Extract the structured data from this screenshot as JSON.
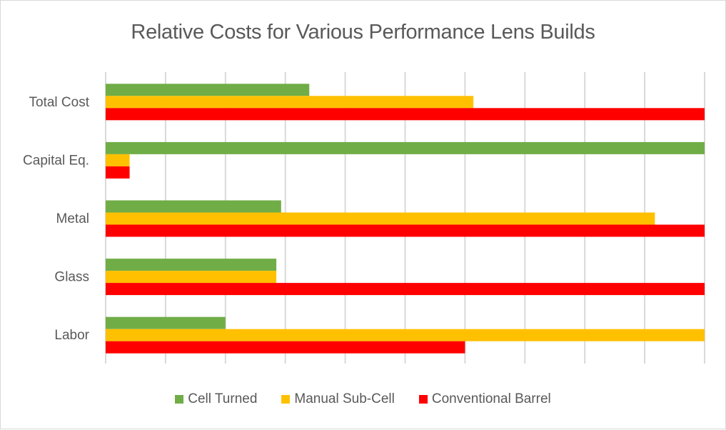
{
  "chart_data": {
    "type": "bar",
    "orientation": "horizontal",
    "title": "Relative Costs for Various Performance Lens Builds",
    "xlabel": "",
    "ylabel": "",
    "xlim": [
      0,
      1
    ],
    "x_tick_labels_shown": false,
    "grid": "vertical",
    "grid_intervals": 10,
    "legend_position": "bottom",
    "categories": [
      "Total Cost",
      "Capital Eq.",
      "Metal",
      "Glass",
      "Labor"
    ],
    "series": [
      {
        "name": "Cell Turned",
        "color": "#70AD47",
        "values": [
          0.34,
          1.0,
          0.293,
          0.285,
          0.2
        ]
      },
      {
        "name": "Manual Sub-Cell",
        "color": "#FFC000",
        "values": [
          0.614,
          0.04,
          0.917,
          0.285,
          1.0
        ]
      },
      {
        "name": "Conventional Barrel",
        "color": "#FF0000",
        "values": [
          1.0,
          0.04,
          1.0,
          1.0,
          0.6
        ]
      }
    ]
  }
}
